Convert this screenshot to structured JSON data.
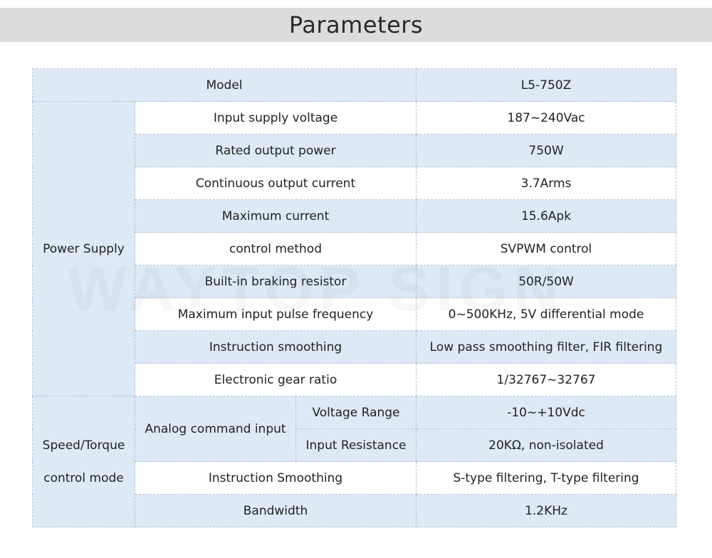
{
  "title": "Parameters",
  "watermark": "WAYTOP SIGN",
  "model": {
    "label": "Model",
    "value": "L5-750Z"
  },
  "power_supply": {
    "group_label": "Power Supply",
    "rows": [
      {
        "label": "Input supply voltage",
        "value": "187~240Vac"
      },
      {
        "label": "Rated output power",
        "value": "750W"
      },
      {
        "label": "Continuous output current",
        "value": "3.7Arms"
      },
      {
        "label": "Maximum current",
        "value": "15.6Apk"
      },
      {
        "label": "control method",
        "value": "SVPWM control"
      },
      {
        "label": "Built-in braking resistor",
        "value": "50R/50W"
      },
      {
        "label": "Maximum input pulse frequency",
        "value": "0~500KHz, 5V differential mode"
      },
      {
        "label": "Instruction smoothing",
        "value": "Low pass smoothing filter, FIR filtering"
      },
      {
        "label": "Electronic gear ratio",
        "value": "1/32767~32767"
      }
    ]
  },
  "speed_torque": {
    "group_label_line1": "Speed/Torque",
    "group_label_line2": "control mode",
    "analog_label": "Analog command input",
    "analog_rows": [
      {
        "label": "Voltage Range",
        "value": "-10~+10Vdc"
      },
      {
        "label": "Input Resistance",
        "value": "20KΩ, non-isolated"
      }
    ],
    "rows": [
      {
        "label": "Instruction Smoothing",
        "value": "S-type filtering, T-type filtering"
      },
      {
        "label": "Bandwidth",
        "value": "1.2KHz"
      }
    ]
  }
}
